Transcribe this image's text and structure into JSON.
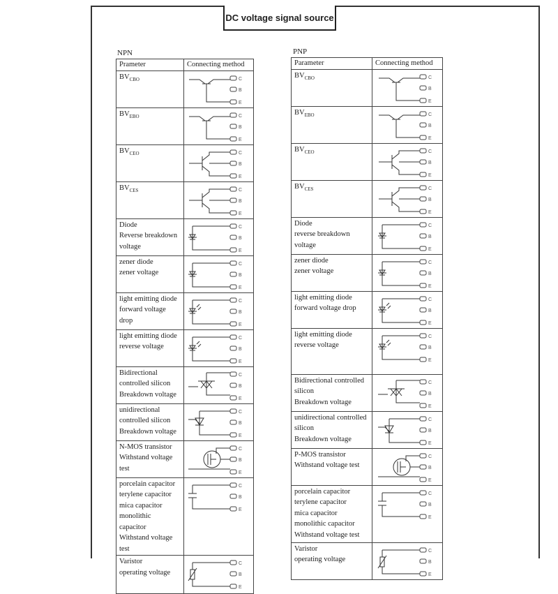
{
  "title": "DC voltage signal source",
  "terminals": [
    "C",
    "B",
    "E"
  ],
  "npn": {
    "caption": "NPN",
    "headers": [
      "Prameter",
      "Connecting method"
    ],
    "rows": [
      {
        "main": "BV",
        "sub": "CBO",
        "lines": [],
        "symbol": "bjt"
      },
      {
        "main": "BV",
        "sub": "EBO",
        "lines": [],
        "symbol": "bjt"
      },
      {
        "main": "BV",
        "sub": "CEO",
        "lines": [],
        "symbol": "bjt2"
      },
      {
        "main": "BV",
        "sub": "CES",
        "lines": [],
        "symbol": "bjt2"
      },
      {
        "main": "",
        "sub": "",
        "lines": [
          "Diode",
          "Reverse breakdown",
          "voltage"
        ],
        "symbol": "diode"
      },
      {
        "main": "",
        "sub": "",
        "lines": [
          "zener diode",
          "zener voltage"
        ],
        "symbol": "diode"
      },
      {
        "main": "",
        "sub": "",
        "lines": [
          "light emitting diode",
          "forward voltage",
          "drop"
        ],
        "symbol": "led"
      },
      {
        "main": "",
        "sub": "",
        "lines": [
          "light emitting diode",
          "reverse voltage"
        ],
        "symbol": "led"
      },
      {
        "main": "",
        "sub": "",
        "lines": [
          "Bidirectional",
          "controlled silicon",
          "Breakdown voltage"
        ],
        "symbol": "triac"
      },
      {
        "main": "",
        "sub": "",
        "lines": [
          "unidirectional",
          "controlled silicon",
          "Breakdown voltage"
        ],
        "symbol": "scr"
      },
      {
        "main": "",
        "sub": "",
        "lines": [
          "N-MOS transistor",
          "Withstand voltage",
          "test"
        ],
        "symbol": "mos"
      },
      {
        "main": "",
        "sub": "",
        "lines": [
          "porcelain capacitor",
          "terylene capacitor",
          "mica capacitor",
          "monolithic",
          "capacitor",
          "Withstand voltage",
          "test"
        ],
        "symbol": "cap"
      },
      {
        "main": "",
        "sub": "",
        "lines": [
          "Varistor",
          "operating voltage"
        ],
        "symbol": "varistor"
      }
    ]
  },
  "pnp": {
    "caption": "PNP",
    "headers": [
      "Parameter",
      "Connecting method"
    ],
    "rows": [
      {
        "main": "BV",
        "sub": "CBO",
        "lines": [],
        "symbol": "bjt"
      },
      {
        "main": "BV",
        "sub": "EBO",
        "lines": [],
        "symbol": "bjt"
      },
      {
        "main": "BV",
        "sub": "CEO",
        "lines": [],
        "symbol": "bjt2"
      },
      {
        "main": "BV",
        "sub": "CES",
        "lines": [],
        "symbol": "bjt2"
      },
      {
        "main": "",
        "sub": "",
        "lines": [
          "Diode",
          "reverse breakdown voltage"
        ],
        "symbol": "diode"
      },
      {
        "main": "",
        "sub": "",
        "lines": [
          "zener diode",
          "zener voltage"
        ],
        "symbol": "diode"
      },
      {
        "main": "",
        "sub": "",
        "lines": [
          "light emitting diode",
          "forward voltage drop"
        ],
        "symbol": "led"
      },
      {
        "main": "",
        "sub": "",
        "lines": [
          "light emitting diode",
          "reverse voltage"
        ],
        "symbol": "led"
      },
      {
        "main": "",
        "sub": "",
        "lines": [
          "Bidirectional controlled",
          "silicon",
          "Breakdown voltage"
        ],
        "symbol": "triac"
      },
      {
        "main": "",
        "sub": "",
        "lines": [
          "unidirectional controlled",
          "silicon",
          "Breakdown voltage"
        ],
        "symbol": "scr"
      },
      {
        "main": "",
        "sub": "",
        "lines": [
          "P-MOS transistor",
          "Withstand voltage test"
        ],
        "symbol": "mos"
      },
      {
        "main": "",
        "sub": "",
        "lines": [
          "porcelain capacitor",
          "terylene capacitor",
          "mica capacitor",
          "monolithic capacitor",
          "Withstand voltage test"
        ],
        "symbol": "cap"
      },
      {
        "main": "",
        "sub": "",
        "lines": [
          "Varistor",
          "operating voltage"
        ],
        "symbol": "varistor"
      }
    ]
  }
}
